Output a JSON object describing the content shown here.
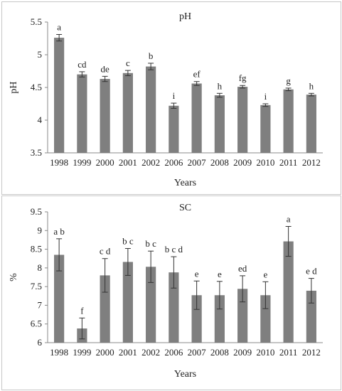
{
  "chart_data": [
    {
      "type": "bar",
      "title": "pH",
      "xlabel": "Years",
      "ylabel": "pH",
      "ylim": [
        3.5,
        5.5
      ],
      "yticks": [
        "3.5",
        "4",
        "4.5",
        "5",
        "5.5"
      ],
      "grid": false,
      "bar_color": "#7f7f7f",
      "categories": [
        "1998",
        "1999",
        "2000",
        "2001",
        "2002",
        "2006",
        "2007",
        "2008",
        "2009",
        "2010",
        "2011",
        "2012"
      ],
      "values": [
        5.26,
        4.7,
        4.63,
        4.72,
        4.82,
        4.22,
        4.56,
        4.38,
        4.51,
        4.23,
        4.47,
        4.39
      ],
      "errors": [
        0.05,
        0.04,
        0.04,
        0.04,
        0.05,
        0.04,
        0.03,
        0.03,
        0.02,
        0.02,
        0.02,
        0.02
      ],
      "letters": [
        "a",
        "cd",
        "de",
        "c",
        "b",
        "i",
        "ef",
        "h",
        "fg",
        "i",
        "g",
        "h"
      ]
    },
    {
      "type": "bar",
      "title": "SC",
      "xlabel": "Years",
      "ylabel": "%",
      "ylim": [
        6,
        9.5
      ],
      "yticks": [
        "6",
        "6.5",
        "7",
        "7.5",
        "8",
        "8.5",
        "9",
        "9.5"
      ],
      "grid": false,
      "bar_color": "#7f7f7f",
      "categories": [
        "1998",
        "1999",
        "2000",
        "2001",
        "2002",
        "2006",
        "2007",
        "2008",
        "2009",
        "2010",
        "2011",
        "2012"
      ],
      "values": [
        8.35,
        6.38,
        7.8,
        8.16,
        8.03,
        7.88,
        7.27,
        7.27,
        7.44,
        7.27,
        8.71,
        7.39
      ],
      "errors": [
        0.43,
        0.28,
        0.45,
        0.36,
        0.42,
        0.42,
        0.38,
        0.37,
        0.35,
        0.36,
        0.4,
        0.33
      ],
      "letters": [
        "a b",
        "f",
        "c d",
        "b c",
        "b c",
        "b c d",
        "e",
        "e",
        "ed",
        "e",
        "a",
        "e d"
      ]
    }
  ]
}
